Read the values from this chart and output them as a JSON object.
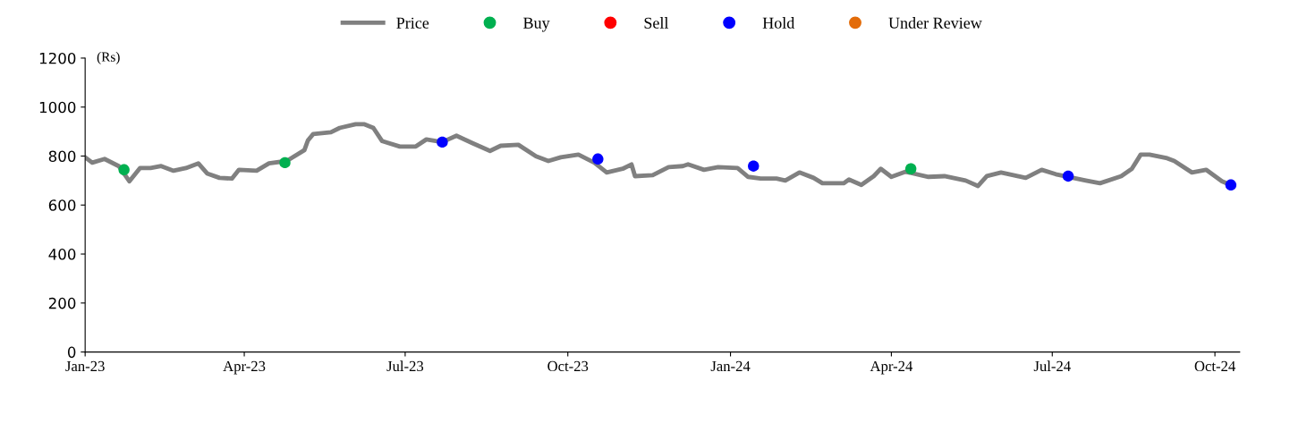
{
  "chart_data": {
    "type": "line",
    "ylabel": "(Rs)",
    "xlim": [
      "2023-01-01",
      "2024-10-15"
    ],
    "ylim": [
      0,
      1200
    ],
    "xticks": [
      {
        "value": "2023-01-01",
        "label": "Jan-23"
      },
      {
        "value": "2023-04-01",
        "label": "Apr-23"
      },
      {
        "value": "2023-07-01",
        "label": "Jul-23"
      },
      {
        "value": "2023-10-01",
        "label": "Oct-23"
      },
      {
        "value": "2024-01-01",
        "label": "Jan-24"
      },
      {
        "value": "2024-04-01",
        "label": "Apr-24"
      },
      {
        "value": "2024-07-01",
        "label": "Jul-24"
      },
      {
        "value": "2024-10-01",
        "label": "Oct-24"
      }
    ],
    "yticks": [
      0,
      200,
      400,
      600,
      800,
      1000,
      1200
    ],
    "grid": false,
    "legend": "top",
    "series": [
      {
        "name": "Price",
        "color": "#808080",
        "marker": "none",
        "x": [
          "2023-01-01",
          "2023-01-05",
          "2023-01-12",
          "2023-01-20",
          "2023-01-26",
          "2023-02-01",
          "2023-02-07",
          "2023-02-13",
          "2023-02-20",
          "2023-02-27",
          "2023-03-06",
          "2023-03-11",
          "2023-03-18",
          "2023-03-25",
          "2023-03-29",
          "2023-04-08",
          "2023-04-15",
          "2023-04-25",
          "2023-05-05",
          "2023-05-07",
          "2023-05-10",
          "2023-05-20",
          "2023-05-25",
          "2023-06-03",
          "2023-06-08",
          "2023-06-13",
          "2023-06-18",
          "2023-06-28",
          "2023-07-07",
          "2023-07-13",
          "2023-07-22",
          "2023-07-30",
          "2023-08-08",
          "2023-08-18",
          "2023-08-24",
          "2023-09-03",
          "2023-09-13",
          "2023-09-20",
          "2023-09-27",
          "2023-10-07",
          "2023-10-16",
          "2023-10-23",
          "2023-11-01",
          "2023-11-06",
          "2023-11-08",
          "2023-11-18",
          "2023-11-27",
          "2023-12-05",
          "2023-12-08",
          "2023-12-17",
          "2023-12-25",
          "2024-01-05",
          "2024-01-11",
          "2024-01-18",
          "2024-01-27",
          "2024-02-01",
          "2024-02-09",
          "2024-02-17",
          "2024-02-22",
          "2024-03-05",
          "2024-03-08",
          "2024-03-15",
          "2024-03-22",
          "2024-03-26",
          "2024-04-01",
          "2024-04-09",
          "2024-04-22",
          "2024-05-01",
          "2024-05-13",
          "2024-05-20",
          "2024-05-25",
          "2024-06-02",
          "2024-06-16",
          "2024-06-25",
          "2024-07-03",
          "2024-07-20",
          "2024-07-28",
          "2024-08-09",
          "2024-08-15",
          "2024-08-20",
          "2024-08-25",
          "2024-09-04",
          "2024-09-08",
          "2024-09-18",
          "2024-09-26",
          "2024-10-05",
          "2024-10-10"
        ],
        "values": [
          795,
          773,
          788,
          759,
          697,
          751,
          751,
          759,
          740,
          751,
          770,
          729,
          711,
          708,
          744,
          740,
          770,
          780,
          824,
          864,
          890,
          897,
          915,
          930,
          930,
          915,
          861,
          839,
          839,
          868,
          857,
          883,
          853,
          821,
          842,
          846,
          799,
          780,
          795,
          806,
          773,
          733,
          748,
          766,
          718,
          722,
          755,
          759,
          766,
          744,
          755,
          751,
          715,
          708,
          708,
          700,
          733,
          711,
          689,
          689,
          704,
          682,
          718,
          748,
          715,
          736,
          715,
          718,
          700,
          678,
          718,
          733,
          711,
          744,
          726,
          700,
          689,
          718,
          748,
          806,
          806,
          791,
          780,
          733,
          744,
          697,
          682
        ]
      },
      {
        "name": "Buy",
        "type": "scatter",
        "color": "#00b050",
        "marker": "circle",
        "x": [
          "2023-01-23",
          "2023-04-24",
          "2024-04-12"
        ],
        "values": [
          744,
          773,
          748
        ]
      },
      {
        "name": "Sell",
        "type": "scatter",
        "color": "#ff0000",
        "marker": "circle"
      },
      {
        "name": "Hold",
        "type": "scatter",
        "color": "#0000ff",
        "marker": "circle",
        "x": [
          "2023-07-22",
          "2023-10-18",
          "2024-01-14",
          "2024-07-10",
          "2024-10-10"
        ],
        "values": [
          857,
          788,
          759,
          718,
          682
        ]
      },
      {
        "name": "Under Review",
        "type": "scatter",
        "color": "#e36c0a",
        "marker": "circle"
      }
    ]
  }
}
